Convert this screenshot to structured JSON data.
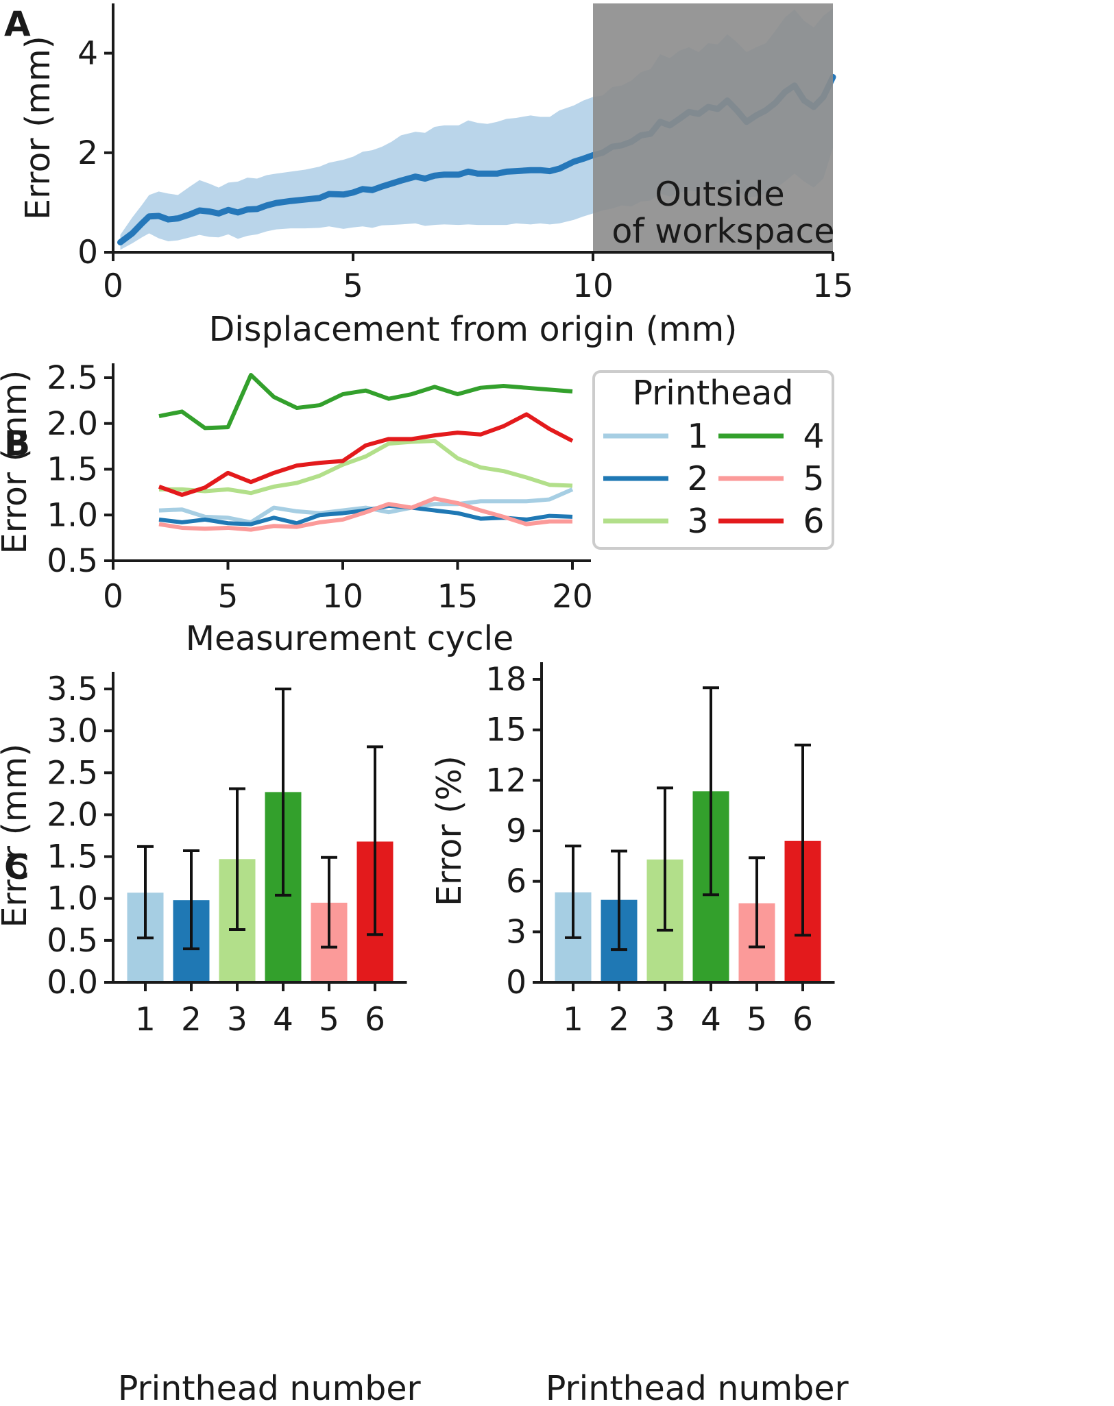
{
  "chart_data": [
    {
      "panel": "A",
      "type": "line",
      "xlabel": "Displacement from origin (mm)",
      "ylabel": "Error (mm)",
      "xlim": [
        0,
        15
      ],
      "ylim": [
        0,
        5
      ],
      "xticks": [
        0,
        5,
        10,
        15
      ],
      "yticks": [
        0,
        2,
        4
      ],
      "shaded_region": {
        "x_from": 10,
        "x_to": 15,
        "color": "#8c8c8c",
        "label_lines": [
          "Outside",
          "of workspace"
        ]
      },
      "series": [
        {
          "color": "#2577b9",
          "band_color": "#bad5ea",
          "x": [
            0.15,
            0.4,
            0.6,
            0.75,
            0.95,
            1.15,
            1.35,
            1.6,
            1.8,
            2.0,
            2.2,
            2.4,
            2.6,
            2.8,
            3.0,
            3.2,
            3.4,
            3.7,
            4.0,
            4.3,
            4.5,
            4.8,
            5.0,
            5.2,
            5.4,
            5.6,
            5.8,
            6.0,
            6.3,
            6.5,
            6.7,
            6.9,
            7.2,
            7.4,
            7.6,
            7.8,
            8.0,
            8.2,
            8.4,
            8.7,
            8.9,
            9.1,
            9.3,
            9.6,
            9.8,
            10.0,
            10.2,
            10.4,
            10.6,
            10.8,
            11.0,
            11.2,
            11.4,
            11.6,
            11.8,
            12.0,
            12.2,
            12.4,
            12.6,
            12.8,
            13.0,
            13.2,
            13.4,
            13.6,
            13.8,
            14.0,
            14.2,
            14.4,
            14.6,
            14.8,
            15.0
          ],
          "mean": [
            0.2,
            0.38,
            0.58,
            0.72,
            0.73,
            0.66,
            0.68,
            0.76,
            0.84,
            0.82,
            0.78,
            0.85,
            0.8,
            0.86,
            0.87,
            0.94,
            0.99,
            1.03,
            1.06,
            1.09,
            1.17,
            1.16,
            1.2,
            1.27,
            1.25,
            1.32,
            1.38,
            1.44,
            1.52,
            1.48,
            1.54,
            1.56,
            1.56,
            1.62,
            1.58,
            1.58,
            1.58,
            1.62,
            1.63,
            1.65,
            1.65,
            1.63,
            1.68,
            1.82,
            1.88,
            1.95,
            2.0,
            2.12,
            2.15,
            2.22,
            2.35,
            2.38,
            2.62,
            2.55,
            2.68,
            2.82,
            2.78,
            2.92,
            2.88,
            3.05,
            2.85,
            2.62,
            2.75,
            2.85,
            3.0,
            3.22,
            3.35,
            3.05,
            2.92,
            3.12,
            3.52
          ],
          "lower": [
            0.05,
            0.18,
            0.3,
            0.38,
            0.28,
            0.22,
            0.24,
            0.3,
            0.35,
            0.31,
            0.3,
            0.36,
            0.27,
            0.33,
            0.36,
            0.42,
            0.46,
            0.48,
            0.48,
            0.49,
            0.52,
            0.47,
            0.5,
            0.52,
            0.49,
            0.54,
            0.55,
            0.56,
            0.58,
            0.53,
            0.55,
            0.56,
            0.55,
            0.56,
            0.55,
            0.55,
            0.55,
            0.55,
            0.58,
            0.56,
            0.58,
            0.56,
            0.58,
            0.65,
            0.72,
            0.78,
            0.84,
            0.88,
            0.94,
            0.92,
            1.02,
            1.04,
            1.18,
            1.12,
            1.2,
            1.24,
            1.22,
            1.38,
            1.28,
            1.4,
            1.24,
            1.1,
            1.12,
            1.18,
            1.28,
            1.42,
            1.58,
            1.42,
            1.3,
            1.48,
            2.1
          ],
          "upper": [
            0.35,
            0.7,
            0.95,
            1.15,
            1.22,
            1.18,
            1.15,
            1.32,
            1.45,
            1.38,
            1.3,
            1.4,
            1.42,
            1.5,
            1.48,
            1.55,
            1.58,
            1.62,
            1.66,
            1.72,
            1.8,
            1.86,
            1.92,
            2.02,
            2.05,
            2.12,
            2.22,
            2.35,
            2.42,
            2.4,
            2.52,
            2.55,
            2.55,
            2.65,
            2.6,
            2.58,
            2.62,
            2.68,
            2.7,
            2.75,
            2.72,
            2.72,
            2.85,
            2.95,
            3.05,
            3.12,
            3.15,
            3.32,
            3.35,
            3.45,
            3.62,
            3.68,
            3.98,
            3.9,
            4.05,
            4.12,
            4.02,
            4.2,
            4.18,
            4.38,
            4.22,
            4.02,
            4.12,
            4.2,
            4.45,
            4.72,
            4.88,
            4.65,
            4.52,
            4.75,
            4.9
          ]
        }
      ]
    },
    {
      "panel": "B",
      "type": "line",
      "xlabel": "Measurement cycle",
      "ylabel": "Error (mm)",
      "xlim": [
        0,
        21
      ],
      "ylim": [
        0.5,
        2.7
      ],
      "xticks": [
        0,
        5,
        10,
        15,
        20
      ],
      "yticks": [
        "0.5",
        "1.0",
        "1.5",
        "2.0",
        "2.5"
      ],
      "legend_title": "Printhead",
      "legend_position": "right",
      "x": [
        2,
        3,
        4,
        5,
        6,
        7,
        8,
        9,
        10,
        11,
        12,
        13,
        14,
        15,
        16,
        17,
        18,
        19,
        20
      ],
      "series": [
        {
          "name": "1",
          "color": "#a6cee3",
          "values": [
            1.05,
            1.06,
            0.98,
            0.97,
            0.92,
            1.08,
            1.04,
            1.02,
            1.05,
            1.08,
            1.03,
            1.08,
            1.12,
            1.12,
            1.15,
            1.15,
            1.15,
            1.17,
            1.28
          ]
        },
        {
          "name": "2",
          "color": "#1f78b4",
          "values": [
            0.95,
            0.92,
            0.95,
            0.91,
            0.9,
            0.97,
            0.91,
            1.0,
            1.02,
            1.05,
            1.1,
            1.08,
            1.05,
            1.02,
            0.96,
            0.97,
            0.95,
            0.99,
            0.98
          ]
        },
        {
          "name": "3",
          "color": "#b2df8a",
          "values": [
            1.28,
            1.28,
            1.26,
            1.28,
            1.24,
            1.31,
            1.35,
            1.43,
            1.55,
            1.64,
            1.78,
            1.8,
            1.81,
            1.62,
            1.52,
            1.48,
            1.41,
            1.33,
            1.32
          ]
        },
        {
          "name": "4",
          "color": "#33a02c",
          "values": [
            2.08,
            2.13,
            1.95,
            1.96,
            2.53,
            2.29,
            2.17,
            2.2,
            2.32,
            2.36,
            2.27,
            2.32,
            2.4,
            2.32,
            2.39,
            2.41,
            2.39,
            2.37,
            2.35
          ]
        },
        {
          "name": "5",
          "color": "#fb9a99",
          "values": [
            0.9,
            0.86,
            0.85,
            0.86,
            0.84,
            0.88,
            0.87,
            0.92,
            0.95,
            1.03,
            1.12,
            1.08,
            1.18,
            1.13,
            1.05,
            0.98,
            0.9,
            0.93,
            0.93
          ]
        },
        {
          "name": "6",
          "color": "#e31a1c",
          "values": [
            1.31,
            1.22,
            1.3,
            1.46,
            1.36,
            1.46,
            1.54,
            1.57,
            1.59,
            1.76,
            1.83,
            1.83,
            1.87,
            1.9,
            1.88,
            1.97,
            2.1,
            1.94,
            1.81
          ]
        }
      ]
    },
    {
      "panel": "C",
      "type": "bar",
      "xlabel": "Printhead number",
      "ylabel": "Error (mm)",
      "ylim": [
        0,
        3.7
      ],
      "yticks": [
        "0.0",
        "0.5",
        "1.0",
        "1.5",
        "2.0",
        "2.5",
        "3.0",
        "3.5"
      ],
      "categories": [
        "1",
        "2",
        "3",
        "4",
        "5",
        "6"
      ],
      "colors": [
        "#a6cee3",
        "#1f78b4",
        "#b2df8a",
        "#33a02c",
        "#fb9a99",
        "#e31a1c"
      ],
      "values": [
        1.07,
        0.98,
        1.47,
        2.27,
        0.95,
        1.68
      ],
      "err_low": [
        0.53,
        0.4,
        0.63,
        1.04,
        0.42,
        0.57
      ],
      "err_high": [
        1.62,
        1.57,
        2.31,
        3.5,
        1.49,
        2.81
      ]
    },
    {
      "panel": "C",
      "type": "bar",
      "xlabel": "Printhead number",
      "ylabel": "Error (%)",
      "ylim": [
        0,
        18.5
      ],
      "yticks": [
        "0",
        "3",
        "6",
        "9",
        "12",
        "15",
        "18"
      ],
      "categories": [
        "1",
        "2",
        "3",
        "4",
        "5",
        "6"
      ],
      "colors": [
        "#a6cee3",
        "#1f78b4",
        "#b2df8a",
        "#33a02c",
        "#fb9a99",
        "#e31a1c"
      ],
      "values": [
        5.35,
        4.9,
        7.3,
        11.35,
        4.7,
        8.4
      ],
      "err_low": [
        2.65,
        1.95,
        3.1,
        5.2,
        2.1,
        2.8
      ],
      "err_high": [
        8.1,
        7.8,
        11.55,
        17.5,
        7.4,
        14.1
      ]
    }
  ],
  "panel_labels": {
    "a": "A",
    "b": "B",
    "c": "C"
  }
}
